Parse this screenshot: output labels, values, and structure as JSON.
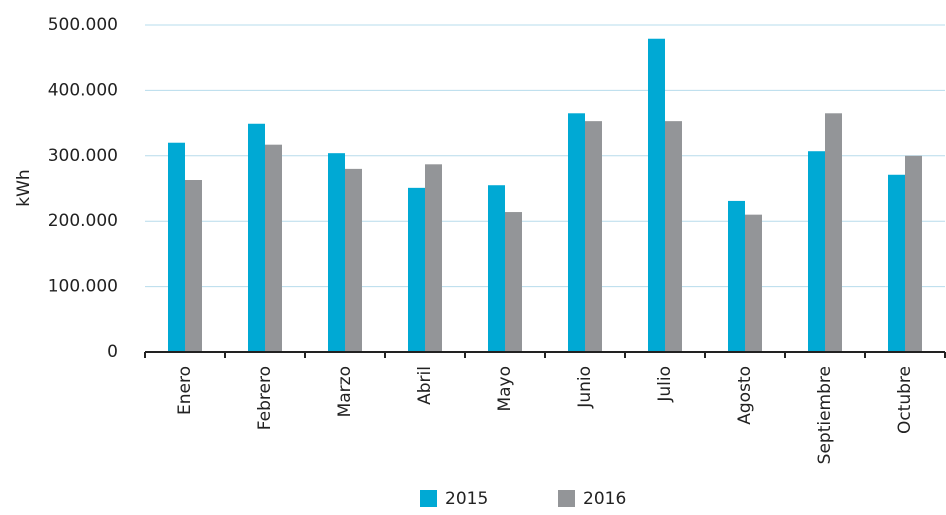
{
  "chart_data": {
    "type": "bar",
    "y_label": "kWh",
    "categories": [
      "Enero",
      "Febrero",
      "Marzo",
      "Abril",
      "Mayo",
      "Junio",
      "Julio",
      "Agosto",
      "Septiembre",
      "Octubre"
    ],
    "series": [
      {
        "name": "2015",
        "color": "#00a9d4",
        "values": [
          320000,
          349000,
          304000,
          251000,
          255000,
          365000,
          479000,
          231000,
          307000,
          271000
        ]
      },
      {
        "name": "2016",
        "color": "#939598",
        "values": [
          263000,
          317000,
          280000,
          287000,
          214000,
          353000,
          353000,
          210000,
          365000,
          300000
        ]
      }
    ],
    "ylim": [
      0,
      500000
    ],
    "yticks": [
      0,
      {
        "value": 100000,
        "label": "100.000"
      },
      {
        "value": 200000,
        "label": "200.000"
      },
      {
        "value": 300000,
        "label": "300.000"
      },
      {
        "value": 400000,
        "label": "400.000"
      },
      {
        "value": 500000,
        "label": "500.000"
      }
    ],
    "grid": true,
    "legend": "bottom"
  }
}
